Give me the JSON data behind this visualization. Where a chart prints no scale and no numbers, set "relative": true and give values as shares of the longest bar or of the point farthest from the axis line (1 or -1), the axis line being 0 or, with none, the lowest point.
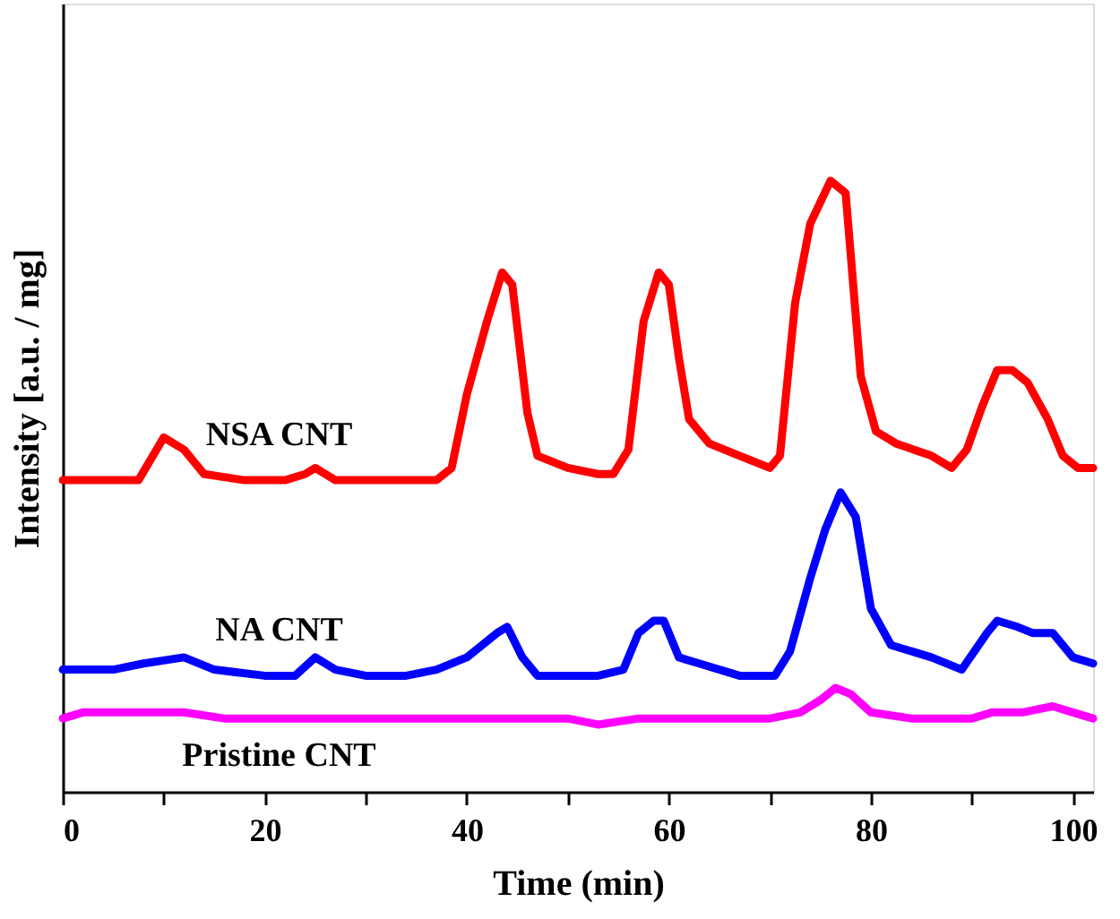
{
  "chart_data": {
    "type": "line",
    "xlabel": "Time (min)",
    "ylabel": "Intensity [a.u. / mg]",
    "relative": true,
    "xlim": [
      0,
      102
    ],
    "xticks": [
      0,
      {
        "value": 10,
        "label": null
      },
      20,
      {
        "value": 30,
        "label": null
      },
      40,
      {
        "value": 50,
        "label": null
      },
      60,
      {
        "value": 70,
        "label": null
      },
      80,
      {
        "value": 90,
        "label": null
      },
      100
    ],
    "grid": false,
    "marker": "none",
    "line_style": "solid",
    "series": [
      {
        "name": "NSA CNT",
        "color": "#ff0000",
        "x": [
          0,
          5,
          7.5,
          10,
          12,
          14,
          18,
          22,
          24,
          25,
          27,
          30,
          35,
          37,
          38.5,
          40,
          42,
          43.5,
          44.5,
          46,
          47,
          50,
          53,
          54.5,
          56,
          57.5,
          59,
          60,
          61,
          62,
          64,
          67,
          70,
          71,
          72.5,
          74,
          76,
          77.5,
          79,
          80.5,
          82.5,
          86,
          88,
          89.5,
          91,
          92.5,
          94,
          95.5,
          97.5,
          99,
          100.5,
          102
        ],
        "values": [
          0.51,
          0.51,
          0.51,
          0.58,
          0.56,
          0.52,
          0.51,
          0.51,
          0.52,
          0.53,
          0.51,
          0.51,
          0.51,
          0.51,
          0.53,
          0.65,
          0.77,
          0.85,
          0.83,
          0.62,
          0.55,
          0.53,
          0.52,
          0.52,
          0.56,
          0.77,
          0.85,
          0.83,
          0.71,
          0.61,
          0.57,
          0.55,
          0.53,
          0.55,
          0.8,
          0.93,
          1.0,
          0.98,
          0.68,
          0.59,
          0.57,
          0.55,
          0.53,
          0.56,
          0.63,
          0.69,
          0.69,
          0.67,
          0.61,
          0.55,
          0.53,
          0.53
        ]
      },
      {
        "name": "NA CNT",
        "color": "#0000ff",
        "x": [
          0,
          5,
          8,
          12,
          15,
          20,
          23,
          25,
          27,
          30,
          34,
          37,
          40,
          43,
          44,
          45.5,
          47,
          50,
          53,
          55.5,
          57,
          58.5,
          59.5,
          61,
          63,
          67,
          70.5,
          72,
          74,
          75.5,
          77,
          78.5,
          80,
          82,
          86,
          89,
          91.5,
          92.5,
          94.5,
          96,
          98,
          100,
          102
        ],
        "values": [
          0.2,
          0.2,
          0.21,
          0.22,
          0.2,
          0.19,
          0.19,
          0.22,
          0.2,
          0.19,
          0.19,
          0.2,
          0.22,
          0.26,
          0.27,
          0.22,
          0.19,
          0.19,
          0.19,
          0.2,
          0.26,
          0.28,
          0.28,
          0.22,
          0.21,
          0.19,
          0.19,
          0.23,
          0.35,
          0.43,
          0.49,
          0.45,
          0.3,
          0.24,
          0.22,
          0.2,
          0.26,
          0.28,
          0.27,
          0.26,
          0.26,
          0.22,
          0.21
        ]
      },
      {
        "name": "Pristine CNT",
        "color": "#ff00ff",
        "x": [
          0,
          2,
          5,
          8,
          12,
          16,
          20,
          25,
          30,
          34,
          38,
          42,
          46,
          50,
          53,
          57,
          60,
          65,
          70,
          73,
          75,
          76.5,
          78,
          80,
          84,
          88,
          90,
          92,
          95,
          98,
          100,
          102
        ],
        "values": [
          0.12,
          0.13,
          0.13,
          0.13,
          0.13,
          0.12,
          0.12,
          0.12,
          0.12,
          0.12,
          0.12,
          0.12,
          0.12,
          0.12,
          0.11,
          0.12,
          0.12,
          0.12,
          0.12,
          0.13,
          0.15,
          0.17,
          0.16,
          0.13,
          0.12,
          0.12,
          0.12,
          0.13,
          0.13,
          0.14,
          0.13,
          0.12
        ]
      }
    ]
  }
}
